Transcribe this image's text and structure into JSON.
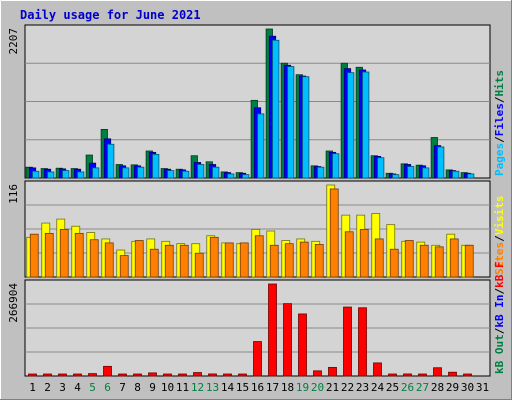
{
  "page_title": "Daily usage for June 2021",
  "colors": {
    "background": "#c0c0c0",
    "panel": "#d4d4d4",
    "grid": "#8a8a8a",
    "title": "#0000cc",
    "weekend": "#008040",
    "weekday": "#000000",
    "hits": "#008040",
    "files": "#0000ff",
    "pages": "#00bfff",
    "visits": "#ffff00",
    "sites": "#ff8000",
    "kb_in": "#0000ff",
    "kb_out": "#008040",
    "kb_f": "#ff0000"
  },
  "chart_data": [
    {
      "type": "bar",
      "title": "Daily usage for June 2021",
      "panel": "requests",
      "categories": [
        "1",
        "2",
        "3",
        "4",
        "5",
        "6",
        "7",
        "8",
        "9",
        "10",
        "11",
        "12",
        "13",
        "14",
        "15",
        "16",
        "17",
        "18",
        "19",
        "20",
        "21",
        "22",
        "23",
        "24",
        "25",
        "26",
        "27",
        "28",
        "29",
        "30",
        "31"
      ],
      "weekend_days": [
        "5",
        "6",
        "12",
        "13",
        "19",
        "20",
        "26",
        "27"
      ],
      "ymax_label": "2207",
      "ylim": [
        0,
        2207
      ],
      "legend": [
        {
          "label": "Hits",
          "color": "#008040"
        },
        {
          "label": "Files",
          "color": "#0000ff"
        },
        {
          "label": "Pages",
          "color": "#00bfff"
        }
      ],
      "legend_separator": "/",
      "series": [
        {
          "name": "Hits",
          "values": [
            160,
            140,
            145,
            140,
            340,
            720,
            200,
            195,
            400,
            140,
            130,
            330,
            240,
            90,
            80,
            1150,
            2207,
            1700,
            1530,
            180,
            400,
            1700,
            1640,
            330,
            70,
            210,
            190,
            600,
            120,
            80,
            0
          ]
        },
        {
          "name": "Files",
          "values": [
            150,
            130,
            135,
            130,
            220,
            580,
            180,
            180,
            380,
            130,
            120,
            230,
            200,
            80,
            70,
            1040,
            2100,
            1670,
            1510,
            170,
            380,
            1620,
            1600,
            320,
            60,
            200,
            180,
            480,
            110,
            70,
            0
          ]
        },
        {
          "name": "Pages",
          "values": [
            100,
            90,
            110,
            90,
            150,
            500,
            150,
            160,
            350,
            110,
            100,
            200,
            160,
            60,
            50,
            950,
            2040,
            1650,
            1500,
            160,
            360,
            1560,
            1570,
            300,
            50,
            170,
            150,
            460,
            100,
            60,
            0
          ]
        }
      ]
    },
    {
      "type": "bar",
      "panel": "visitors",
      "ymax_label": "116",
      "ylim": [
        0,
        116
      ],
      "legend": [
        {
          "label": "Visits",
          "color": "#ffff00"
        },
        {
          "label": "Sites",
          "color": "#ff8000"
        }
      ],
      "legend_separator": "/",
      "series": [
        {
          "name": "Visits",
          "values": [
            50,
            68,
            73,
            64,
            56,
            48,
            34,
            45,
            48,
            45,
            42,
            42,
            52,
            43,
            42,
            60,
            58,
            46,
            48,
            45,
            116,
            78,
            78,
            80,
            66,
            45,
            44,
            40,
            54,
            40,
            0
          ]
        },
        {
          "name": "Sites",
          "values": [
            54,
            55,
            60,
            55,
            47,
            43,
            27,
            46,
            35,
            40,
            40,
            30,
            50,
            43,
            43,
            52,
            40,
            42,
            44,
            41,
            111,
            57,
            60,
            48,
            35,
            46,
            40,
            38,
            48,
            40,
            0
          ]
        }
      ]
    },
    {
      "type": "bar",
      "panel": "kbytes",
      "ymax_label": "266904",
      "ylim": [
        0,
        266904
      ],
      "legend": [
        {
          "label": "kB F",
          "color": "#ff0000"
        },
        {
          "label": "kB In",
          "color": "#0000ff"
        },
        {
          "label": "kB Out",
          "color": "#008040"
        }
      ],
      "legend_separator": "/",
      "series": [
        {
          "name": "kB F",
          "values": [
            3000,
            3000,
            5000,
            5000,
            7000,
            28000,
            3000,
            3000,
            9000,
            3000,
            3000,
            10000,
            6000,
            3000,
            3000,
            100000,
            266904,
            210000,
            180000,
            15000,
            25000,
            200000,
            198000,
            38000,
            3000,
            6000,
            5000,
            24000,
            11000,
            3000,
            0
          ]
        }
      ]
    }
  ]
}
